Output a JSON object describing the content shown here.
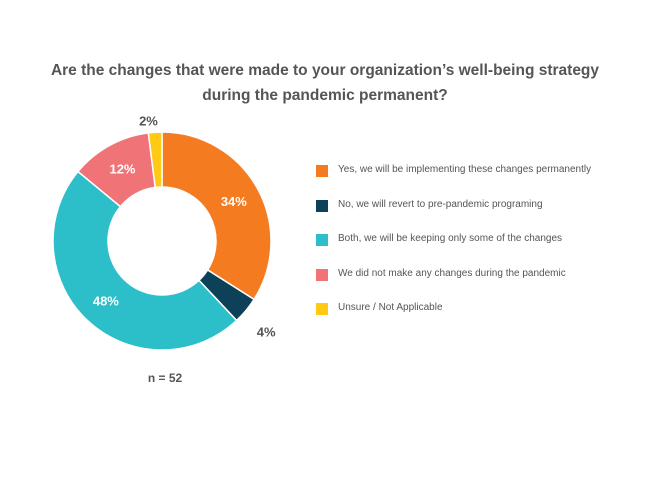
{
  "chart_data": {
    "type": "pie",
    "title": "Are the changes that were made to your organization’s well-being strategy during the pandemic permanent?",
    "note": "n = 52",
    "legend_position": "right",
    "slices": [
      {
        "label": "Yes, we will be implementing these changes permanently",
        "value": 34,
        "value_label": "34%",
        "color": "#F47B20",
        "label_color": "#ffffff"
      },
      {
        "label": "No, we will revert to pre-pandemic programing",
        "value": 4,
        "value_label": "4%",
        "color": "#0D4059",
        "label_color": "#555555"
      },
      {
        "label": "Both, we will be keeping only some of the changes",
        "value": 48,
        "value_label": "48%",
        "color": "#2DBFC9",
        "label_color": "#ffffff"
      },
      {
        "label": "We did not make any changes during the pandemic",
        "value": 12,
        "value_label": "12%",
        "color": "#F07378",
        "label_color": "#ffffff"
      },
      {
        "label": "Unsure / Not Applicable",
        "value": 2,
        "value_label": "2%",
        "color": "#FFC914",
        "label_color": "#555555"
      }
    ]
  }
}
